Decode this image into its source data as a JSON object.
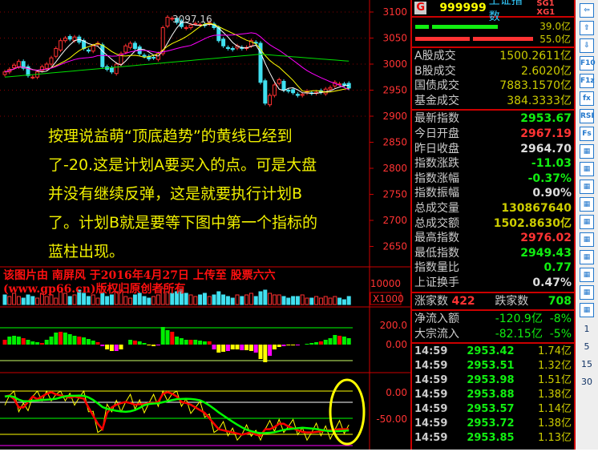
{
  "chart": {
    "high_label": "3097.16",
    "price_axis": [
      "3100",
      "3050",
      "3000",
      "2950",
      "2900",
      "2850",
      "2800",
      "2750",
      "2700",
      "2650"
    ],
    "vol_axis": "10000",
    "vol_unit": "X1000",
    "macd_axis": [
      "200.0",
      "0.00"
    ],
    "ind_axis": [
      "0.00",
      "-50.00"
    ],
    "colors": {
      "up": "#ff3030",
      "down": "#40e0f0",
      "ma5": "#ffffff",
      "ma10": "#ffff00",
      "ma20": "#ff00ff",
      "ma60": "#00e000"
    }
  },
  "chart_data": {
    "type": "candlestick",
    "closes": [
      2985,
      2990,
      2998,
      3005,
      2992,
      2978,
      2975,
      2985,
      2995,
      3000,
      3012,
      3030,
      3045,
      3050,
      3048,
      3052,
      3042,
      3030,
      3025,
      3035,
      3040,
      2995,
      2990,
      2985,
      3000,
      3020,
      3035,
      3040,
      3030,
      3020,
      3015,
      3010,
      3012,
      3020,
      3070,
      3090,
      3088,
      3080,
      3072,
      3070,
      3075,
      3078,
      3076,
      3074,
      3080,
      3070,
      3045,
      3035,
      3030,
      3028,
      3035,
      3030,
      3032,
      3045,
      3040,
      2965,
      2925,
      2940,
      2960,
      2970,
      2950,
      2948,
      2945,
      2940,
      2942,
      2948,
      2944,
      2946,
      2946,
      2952,
      2955,
      2965,
      2962,
      2960,
      2954
    ],
    "volume": [
      6,
      5,
      7,
      5,
      4,
      6,
      5,
      4,
      7,
      5,
      6,
      4,
      8,
      7,
      5,
      6,
      9,
      7,
      5,
      6,
      4,
      7,
      5,
      6,
      8,
      9,
      5,
      4,
      6,
      7,
      5,
      4,
      5,
      6,
      10,
      8,
      7,
      8,
      9,
      7,
      6,
      5,
      6,
      7,
      5,
      6,
      8,
      6,
      5,
      4,
      6,
      5,
      6,
      7,
      5,
      8,
      9,
      7,
      6,
      6,
      5,
      4,
      5,
      5,
      6,
      4,
      4,
      5,
      4,
      5,
      4,
      5,
      4,
      3,
      5
    ],
    "macd": [
      60,
      100,
      110,
      100,
      80,
      60,
      40,
      30,
      20,
      60,
      100,
      150,
      160,
      150,
      130,
      110,
      100,
      90,
      70,
      50,
      30,
      -20,
      -60,
      -80,
      -80,
      -60,
      0,
      60,
      50,
      40,
      20,
      -10,
      -20,
      -10,
      220,
      180,
      160,
      100,
      80,
      60,
      60,
      60,
      50,
      40,
      40,
      -60,
      -100,
      -90,
      -80,
      -60,
      -60,
      -70,
      -70,
      -80,
      -100,
      -180,
      -220,
      -140,
      -60,
      -30,
      -20,
      -10,
      -10,
      -10,
      0,
      10,
      20,
      30,
      40,
      60,
      80,
      120,
      110,
      100,
      80
    ],
    "ind_white": [
      -10,
      -8,
      -15,
      -30,
      -30,
      -20,
      -10,
      -15,
      -10,
      -5,
      -2,
      -6,
      -8,
      -10,
      -12,
      -10,
      -12,
      -14,
      -30,
      -45,
      -60,
      -70,
      -40,
      -30,
      -25,
      -22,
      -20,
      -22,
      -25,
      -24,
      -24,
      -22,
      -22,
      -20,
      -5,
      -2,
      -5,
      -10,
      -20,
      -22,
      -25,
      -30,
      -35,
      -40,
      -50,
      -60,
      -70,
      -72,
      -74,
      -76,
      -78,
      -80,
      -78,
      -75,
      -80,
      -82,
      -70,
      -70,
      -66,
      -60,
      -60,
      -65,
      -68,
      -72,
      -75,
      -76,
      -76,
      -75,
      -74,
      -72,
      -72,
      -71,
      -70,
      -70,
      -70
    ]
  },
  "overlay_text": [
    "按理说益萌“顶底趋势”的黄线已经到",
    "了-20.这是计划A要买入的点。可是大盘",
    "并没有继续反弹，这是就要执行计划B",
    "了。计划B就是要等下图中第一个指标的",
    "蓝柱出现。"
  ],
  "watermark": "该图片由 南屏风 于2016年4月27日 上传至 股票六六(www.gp66.cn)版权归原创者所有",
  "panel": {
    "logo": "G",
    "code": "999999",
    "name": "上证指数",
    "sg": "SG1 XG1",
    "bar_values": [
      "39.0亿",
      "55.0亿"
    ],
    "turnover": [
      [
        "A股成交",
        "1500.2611亿"
      ],
      [
        "B股成交",
        "2.6020亿"
      ],
      [
        "国债成交",
        "7883.1570亿"
      ],
      [
        "基金成交",
        "384.3333亿"
      ]
    ],
    "quote": [
      [
        "最新指数",
        "2953.67",
        "g"
      ],
      [
        "今日开盘",
        "2967.19",
        "r"
      ],
      [
        "昨日收盘",
        "2964.70",
        "w"
      ],
      [
        "指数涨跌",
        "-11.03",
        "g"
      ],
      [
        "指数涨幅",
        "-0.37%",
        "g"
      ],
      [
        "指数振幅",
        "0.90%",
        "w"
      ],
      [
        "总成交量",
        "130867640",
        "y"
      ],
      [
        "总成交额",
        "1502.8630亿",
        "y"
      ],
      [
        "最高指数",
        "2976.02",
        "r"
      ],
      [
        "最低指数",
        "2949.43",
        "g"
      ],
      [
        "指数量比",
        "0.77",
        "g"
      ],
      [
        "上证换手",
        "0.47%",
        "w"
      ]
    ],
    "up_label": "涨家数",
    "up_count": "422",
    "down_label": "跌家数",
    "down_count": "708",
    "flows": [
      [
        "净流入额",
        "-120.9亿",
        "-8%"
      ],
      [
        "大宗流入",
        "-82.15亿",
        "-5%"
      ]
    ],
    "ticks": [
      [
        "14:59",
        "2953.42",
        "1.74亿"
      ],
      [
        "14:59",
        "2953.51",
        "1.32亿"
      ],
      [
        "14:59",
        "2953.98",
        "1.51亿"
      ],
      [
        "14:59",
        "2953.88",
        "1.38亿"
      ],
      [
        "14:59",
        "2953.57",
        "1.14亿"
      ],
      [
        "14:59",
        "2953.72",
        "1.38亿"
      ],
      [
        "14:59",
        "2953.85",
        "1.13亿"
      ]
    ]
  },
  "toolbar": {
    "buttons": [
      "back",
      "up",
      "down",
      "F10",
      "F1z",
      "fx",
      "RSI",
      "Fs"
    ],
    "periods": [
      "1",
      "5",
      "15",
      "30"
    ]
  }
}
